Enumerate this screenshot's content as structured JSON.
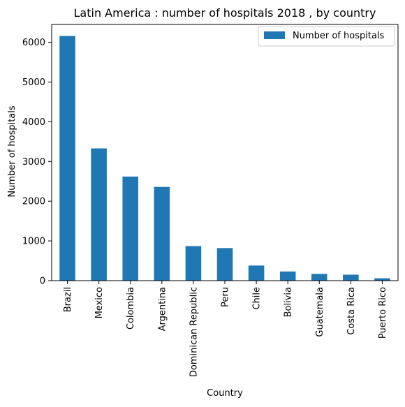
{
  "chart_data": {
    "type": "bar",
    "title": "Latin America : number of hospitals 2018 , by country",
    "xlabel": "Country",
    "ylabel": "Number of hospitals",
    "categories": [
      "Brazil",
      "Mexico",
      "Colombia",
      "Argentina",
      "Dominican Republic",
      "Peru",
      "Chile",
      "Bolivia",
      "Guatemala",
      "Costa Rica",
      "Puerto Rico"
    ],
    "series": [
      {
        "name": "Number of hospitals",
        "color": "#1f77b4",
        "values": [
          6160,
          3330,
          2620,
          2360,
          870,
          820,
          380,
          230,
          170,
          150,
          60
        ]
      }
    ],
    "ylim": [
      0,
      6450
    ],
    "yticks": [
      0,
      1000,
      2000,
      3000,
      4000,
      5000,
      6000
    ],
    "grid": false,
    "legend_position": "top-right"
  }
}
